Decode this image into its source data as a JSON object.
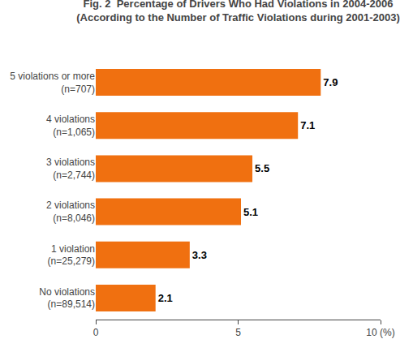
{
  "chart_data": {
    "type": "bar",
    "orientation": "horizontal",
    "title": "Fig. 2  Percentage of Drivers Who Had Violations in 2004-2006\n(According to the Number of Traffic Violations during 2001-2003)",
    "categories": [
      "5 violations or more\n(n=707)",
      "4 violations\n(n=1,065)",
      "3 violations\n(n=2,744)",
      "2 violations\n(n=8,046)",
      "1 violation\n(n=25,279)",
      "No violations\n(n=89,514)"
    ],
    "values": [
      7.9,
      7.1,
      5.5,
      5.1,
      3.3,
      2.1
    ],
    "color": "#F07010",
    "xlim": [
      0,
      10
    ],
    "xticks": [
      0,
      5,
      {
        "value": 10,
        "label": "10 (%)"
      }
    ],
    "data_labels": true,
    "grid": false
  }
}
